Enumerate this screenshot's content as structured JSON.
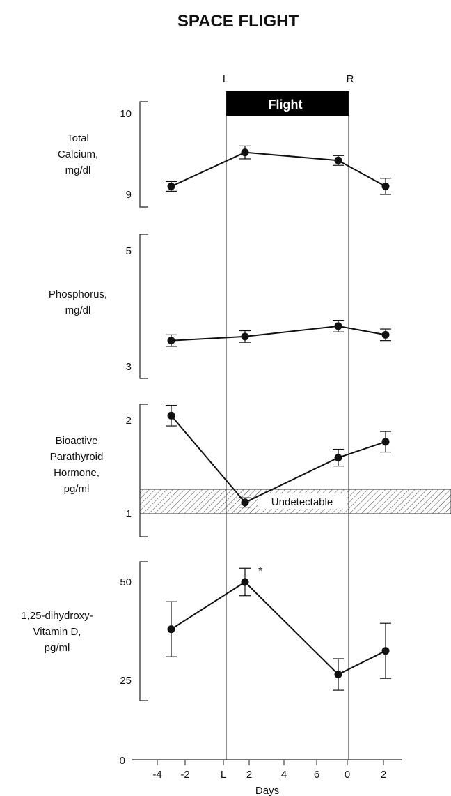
{
  "title": "SPACE FLIGHT",
  "markers": {
    "launch": "L",
    "recovery": "R"
  },
  "flight_label": "Flight",
  "undetectable_label": "Undetectable",
  "x_axis": {
    "label": "Days",
    "ticks": [
      "-4",
      "-2",
      "L",
      "2",
      "4",
      "6",
      "0",
      "2"
    ]
  },
  "y_axis": {
    "zero_label": "0"
  },
  "significance_marker": "*",
  "chart_data": [
    {
      "type": "line",
      "panel": "calcium",
      "ylabel": [
        "Total",
        "Calcium,",
        "mg/dl"
      ],
      "ylim": [
        9,
        10
      ],
      "yticks": [
        "10",
        "9"
      ],
      "x": [
        "-3",
        "2",
        "9",
        "2"
      ],
      "values": [
        9.1,
        9.52,
        9.42,
        9.1
      ],
      "error": [
        0.06,
        0.08,
        0.06,
        0.1
      ]
    },
    {
      "type": "line",
      "panel": "phosphorus",
      "ylabel": [
        "Phosphorus,",
        "mg/dl"
      ],
      "ylim": [
        3,
        5
      ],
      "yticks": [
        "5",
        "3"
      ],
      "x": [
        "-3",
        "2",
        "9",
        "2"
      ],
      "values": [
        3.45,
        3.52,
        3.7,
        3.55
      ],
      "error": [
        0.1,
        0.1,
        0.1,
        0.1
      ]
    },
    {
      "type": "line",
      "panel": "parathyroid",
      "ylabel": [
        "Bioactive",
        "Parathyroid",
        "Hormone,",
        "pg/ml"
      ],
      "ylim": [
        1,
        2
      ],
      "yticks": [
        "2",
        "1"
      ],
      "x": [
        "-3",
        "2",
        "9",
        "2"
      ],
      "values": [
        2.05,
        1.12,
        1.6,
        1.77
      ],
      "error": [
        0.11,
        0.05,
        0.09,
        0.11
      ],
      "undetectable_band": [
        1.0,
        1.22
      ]
    },
    {
      "type": "line",
      "panel": "vitamin_d",
      "ylabel": [
        "1,25-dihydroxy-",
        "Vitamin D,",
        "pg/ml"
      ],
      "ylim": [
        25,
        50
      ],
      "yticks": [
        "50",
        "25"
      ],
      "x": [
        "-3",
        "2",
        "9",
        "2"
      ],
      "values": [
        38,
        50,
        26.5,
        32.5
      ],
      "error": [
        7,
        3.5,
        4,
        7
      ]
    }
  ]
}
